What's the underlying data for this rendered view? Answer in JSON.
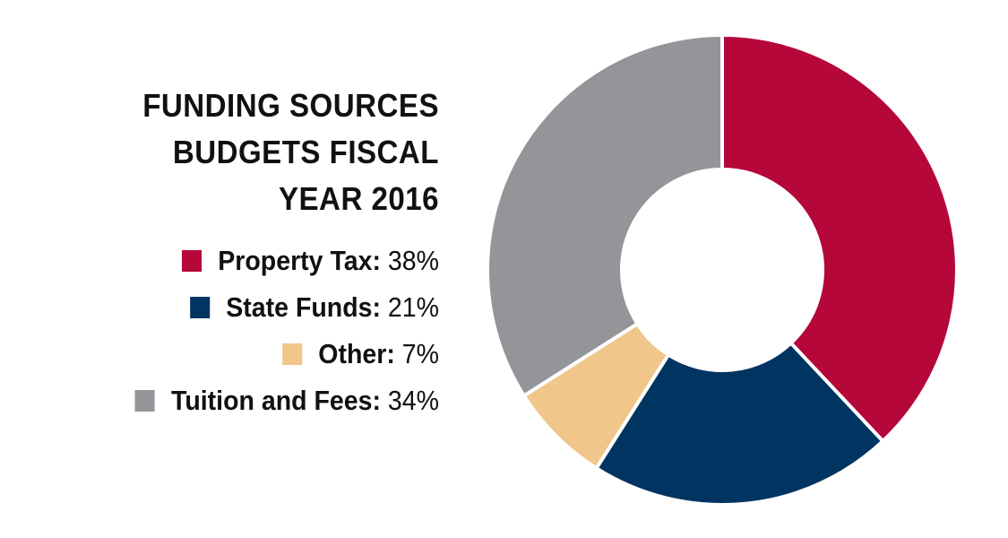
{
  "chart_data": {
    "type": "pie",
    "donut": true,
    "title_lines": [
      "FUNDING SOURCES",
      "BUDGETS FISCAL",
      "YEAR 2016"
    ],
    "slices": [
      {
        "label": "Property Tax",
        "value": 38,
        "display": "38%",
        "color": "#b5073a"
      },
      {
        "label": "State Funds",
        "value": 21,
        "display": "21%",
        "color": "#003461"
      },
      {
        "label": "Other",
        "value": 7,
        "display": "7%",
        "color": "#f0c68a"
      },
      {
        "label": "Tuition and Fees",
        "value": 34,
        "display": "34%",
        "color": "#939598"
      }
    ],
    "legend_position": "left"
  }
}
